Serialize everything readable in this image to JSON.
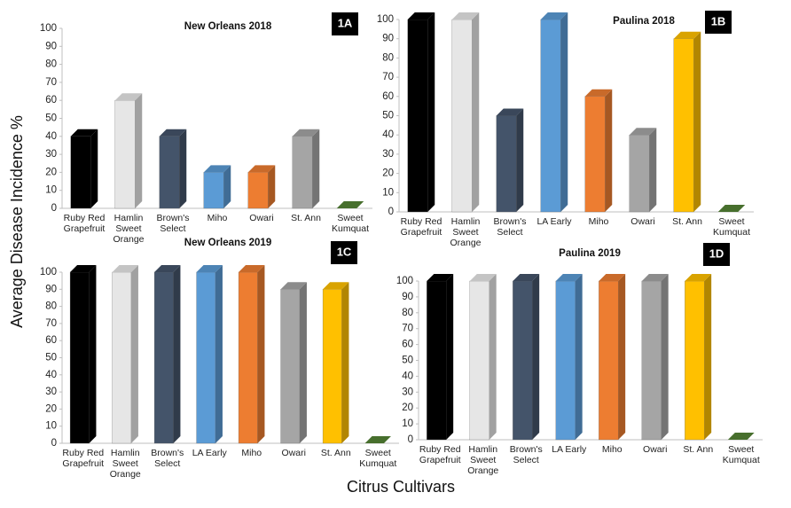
{
  "y_label": "Average Disease Incidence %",
  "x_label": "Citrus Cultivars",
  "chart_data": [
    {
      "type": "bar3d",
      "title": "New Orleans 2018",
      "label": "1A",
      "categories": [
        "Ruby Red Grapefruit",
        "Hamlin Sweet Orange",
        "Brown's Select",
        "Miho",
        "Owari",
        "St. Ann",
        "Sweet Kumquat"
      ],
      "values": [
        40,
        60,
        40,
        20,
        20,
        40,
        0
      ],
      "colors": [
        "#000000",
        "#e6e6e6",
        "#44546a",
        "#5b9bd5",
        "#ed7d31",
        "#a5a5a5",
        "#548235"
      ],
      "ylim": [
        0,
        100
      ],
      "yticks": [
        0,
        10,
        20,
        30,
        40,
        50,
        60,
        70,
        80,
        90,
        100
      ]
    },
    {
      "type": "bar3d",
      "title": "Paulina 2018",
      "label": "1B",
      "categories": [
        "Ruby Red Grapefruit",
        "Hamlin Sweet Orange",
        "Brown's Select",
        "LA Early",
        "Miho",
        "Owari",
        "St. Ann",
        "Sweet Kumquat"
      ],
      "values": [
        100,
        100,
        50,
        100,
        60,
        40,
        90,
        0
      ],
      "colors": [
        "#000000",
        "#e6e6e6",
        "#44546a",
        "#5b9bd5",
        "#ed7d31",
        "#a5a5a5",
        "#ffc000",
        "#548235"
      ],
      "ylim": [
        0,
        100
      ],
      "yticks": [
        0,
        10,
        20,
        30,
        40,
        50,
        60,
        70,
        80,
        90,
        100
      ]
    },
    {
      "type": "bar3d",
      "title": "New Orleans 2019",
      "label": "1C",
      "categories": [
        "Ruby Red Grapefruit",
        "Hamlin Sweet Orange",
        "Brown's Select",
        "LA Early",
        "Miho",
        "Owari",
        "St. Ann",
        "Sweet Kumquat"
      ],
      "values": [
        100,
        100,
        100,
        100,
        100,
        90,
        90,
        0
      ],
      "colors": [
        "#000000",
        "#e6e6e6",
        "#44546a",
        "#5b9bd5",
        "#ed7d31",
        "#a5a5a5",
        "#ffc000",
        "#548235"
      ],
      "ylim": [
        0,
        100
      ],
      "yticks": [
        0,
        10,
        20,
        30,
        40,
        50,
        60,
        70,
        80,
        90,
        100
      ]
    },
    {
      "type": "bar3d",
      "title": "Paulina 2019",
      "label": "1D",
      "categories": [
        "Ruby Red Grapefruit",
        "Hamlin Sweet Orange",
        "Brown's Select",
        "LA Early",
        "Miho",
        "Owari",
        "St. Ann",
        "Sweet Kumquat"
      ],
      "values": [
        100,
        100,
        100,
        100,
        100,
        100,
        100,
        0
      ],
      "colors": [
        "#000000",
        "#e6e6e6",
        "#44546a",
        "#5b9bd5",
        "#ed7d31",
        "#a5a5a5",
        "#ffc000",
        "#548235"
      ],
      "ylim": [
        0,
        100
      ],
      "yticks": [
        0,
        10,
        20,
        30,
        40,
        50,
        60,
        70,
        80,
        90,
        100
      ]
    }
  ]
}
